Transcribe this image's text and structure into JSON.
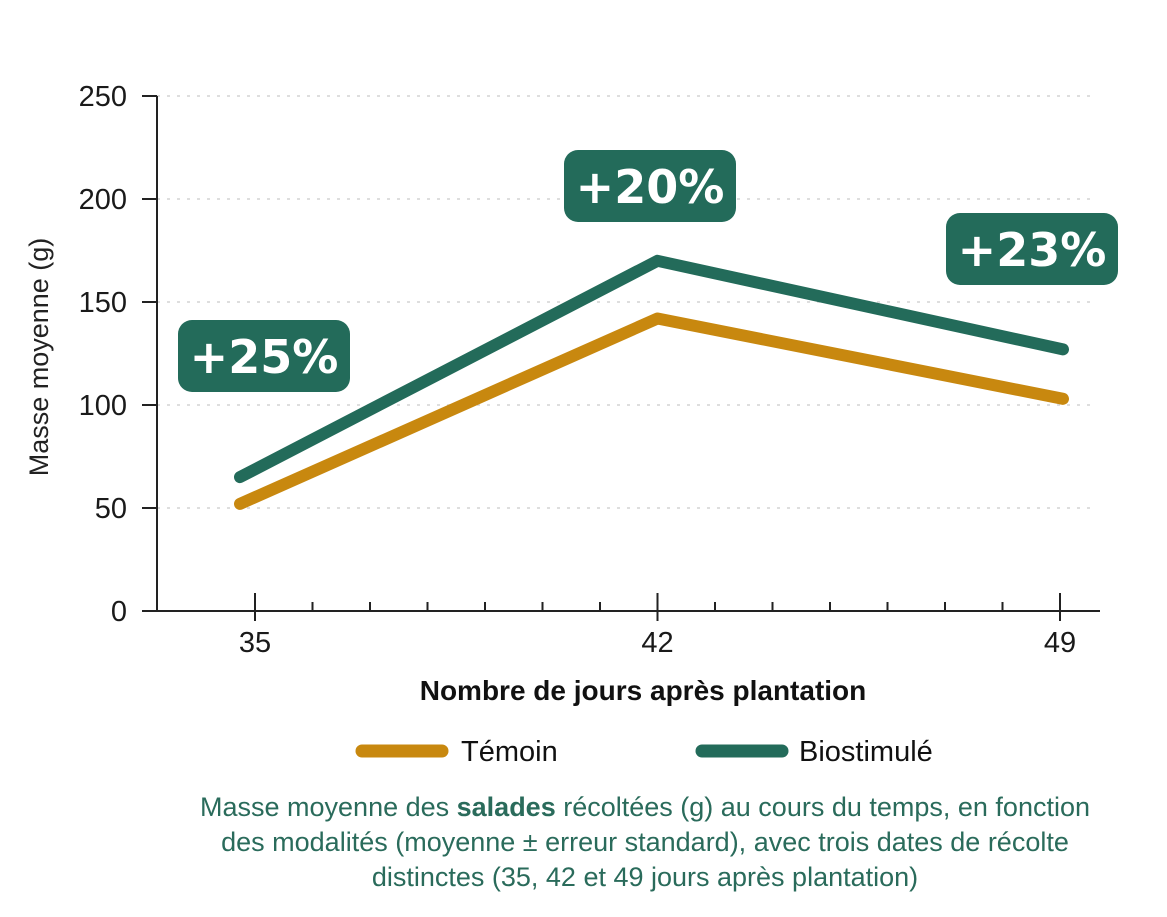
{
  "chart_data": {
    "type": "line",
    "xlabel": "Nombre de jours après plantation",
    "ylabel": "Masse moyenne (g)",
    "x": [
      35,
      42,
      49
    ],
    "xticks": [
      "35",
      "42",
      "49"
    ],
    "xlim": [
      35,
      49
    ],
    "ylim": [
      0,
      250
    ],
    "yticks": [
      "0",
      "50",
      "100",
      "150",
      "200",
      "250"
    ],
    "grid": "horizontal dotted",
    "series": [
      {
        "name": "Témoin",
        "values": [
          52,
          142,
          103
        ],
        "color": "#c8880f"
      },
      {
        "name": "Biostimulé",
        "values": [
          65,
          170,
          127
        ],
        "color": "#236b5a"
      }
    ],
    "annotations": [
      "+25%",
      "+20%",
      "+23%"
    ],
    "legend_position": "bottom"
  },
  "caption": {
    "before": "Masse moyenne des ",
    "bold": "salades",
    "after": " récoltées (g) au cours du temps, en fonction des modalités (moyenne ± erreur standard), avec trois dates de récolte distinctes (35, 42 et 49 jours après plantation)"
  }
}
